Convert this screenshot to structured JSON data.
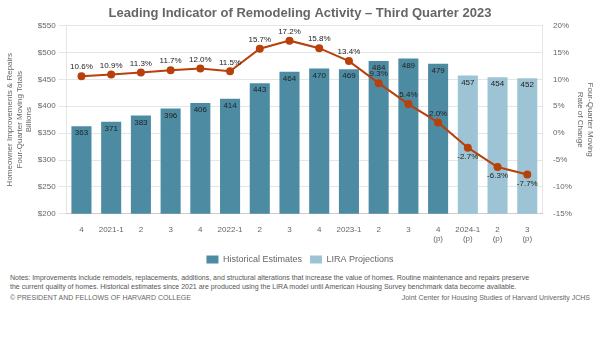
{
  "chart_data": {
    "type": "bar",
    "title": "Leading Indicator of Remodeling Activity – Third Quarter 2023",
    "y_label": "Homeowner Improvements & Repairs\nFour-Quarter Moving Totals\nBillions",
    "y2_label": "Four-Quarter Moving\nRate of Change",
    "categories": [
      "4",
      "2021-1",
      "2",
      "3",
      "4",
      "2022-1",
      "2",
      "3",
      "4",
      "2023-1",
      "2",
      "3",
      "4\n(p)",
      "2024-1\n(p)",
      "2\n(p)",
      "3\n(p)"
    ],
    "series": [
      {
        "name": "Historical Estimates",
        "type": "bar",
        "color": "#4d8ba3",
        "data_labels": true,
        "values": [
          363,
          371,
          383,
          396,
          406,
          414,
          443,
          464,
          470,
          469,
          484,
          489,
          479,
          null,
          null,
          null
        ]
      },
      {
        "name": "LIRA Projections",
        "type": "bar",
        "color": "#9dc4d4",
        "data_labels": true,
        "values": [
          null,
          null,
          null,
          null,
          null,
          null,
          null,
          null,
          null,
          null,
          null,
          null,
          null,
          457,
          454,
          452
        ]
      },
      {
        "type": "line",
        "axis": "y2",
        "color": "#b8400a",
        "marker": "circle",
        "line_style": "solid",
        "data_labels": true,
        "values": [
          10.6,
          10.9,
          11.3,
          11.7,
          12.0,
          11.5,
          15.7,
          17.2,
          15.8,
          13.4,
          9.3,
          5.4,
          2.0,
          -2.7,
          -6.3,
          -7.7
        ],
        "value_labels": [
          "10.6%",
          "10.9%",
          "11.3%",
          "11.7%",
          "12.0%",
          "11.5%",
          "15.7%",
          "17.2%",
          "15.8%",
          "13.4%",
          "9.3%",
          "5.4%",
          "2.0%",
          "-2.7%",
          "-6.3%",
          "-7.7%"
        ]
      }
    ],
    "ylim": [
      200,
      550
    ],
    "yticks": [
      {
        "value": 200,
        "label": "$200"
      },
      {
        "value": 250,
        "label": "$250"
      },
      {
        "value": 300,
        "label": "$300"
      },
      {
        "value": 350,
        "label": "$350"
      },
      {
        "value": 400,
        "label": "$400"
      },
      {
        "value": 450,
        "label": "$450"
      },
      {
        "value": 500,
        "label": "$500"
      },
      {
        "value": 550,
        "label": "$550"
      }
    ],
    "y2lim": [
      -15,
      20
    ],
    "y2ticks": [
      {
        "value": -15,
        "label": "-15%"
      },
      {
        "value": -10,
        "label": "-10%"
      },
      {
        "value": -5,
        "label": "-5%"
      },
      {
        "value": 0,
        "label": "0%"
      },
      {
        "value": 5,
        "label": "5%"
      },
      {
        "value": 10,
        "label": "10%"
      },
      {
        "value": 15,
        "label": "15%"
      },
      {
        "value": 20,
        "label": "20%"
      }
    ],
    "grid": true,
    "legend": "bottom",
    "annotations": [
      "Notes: Improvements include remodels, replacements, additions, and structural alterations that increase the value of homes. Routine maintenance and repairs preserve\nthe current quality of homes. Historical estimates since 2021 are produced using the LIRA model until American Housing Survey benchmark data become available.",
      "© PRESIDENT AND FELLOWS OF HARVARD COLLEGE",
      "Joint Center for Housing Studies of Harvard University   JCHS"
    ]
  }
}
